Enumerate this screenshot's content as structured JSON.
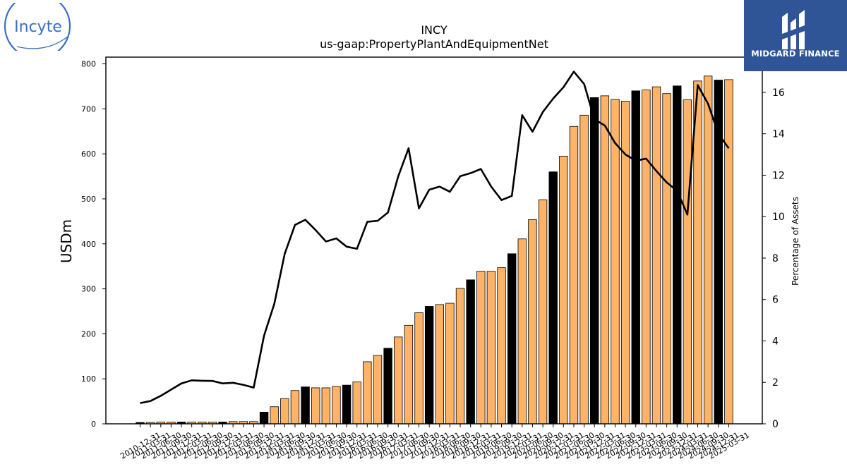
{
  "logos": {
    "left_text": "Incyte",
    "right_text": "MIDGARD FINANCE",
    "brand_blue": "#2f5597",
    "incyte_blue": "#3a6fbf"
  },
  "chart_data": {
    "type": "bar",
    "title": "INCY",
    "subtitle": "us-gaap:PropertyPlantAndEquipmentNet",
    "ylabel": "USDm",
    "y2label": "Percentage of Assets",
    "ylim": [
      0,
      815
    ],
    "y2lim": [
      0,
      17.7
    ],
    "yticks": [
      0,
      100,
      200,
      300,
      400,
      500,
      600,
      700,
      800
    ],
    "y2ticks": [
      0,
      2,
      4,
      6,
      8,
      10,
      12,
      14,
      16
    ],
    "grid": false,
    "bar_colors": {
      "quarter": "#ffb366",
      "year_end": "#000000"
    },
    "line_color": "#000000",
    "categories": [
      "2010-12-31",
      "2011-03-31",
      "2011-06-30",
      "2011-09-30",
      "2011-12-31",
      "2012-03-31",
      "2012-06-30",
      "2012-09-30",
      "2012-12-31",
      "2013-03-31",
      "2013-06-30",
      "2013-09-30",
      "2013-12-31",
      "2014-03-31",
      "2014-06-30",
      "2014-09-30",
      "2014-12-31",
      "2015-03-31",
      "2015-06-30",
      "2015-09-30",
      "2015-12-31",
      "2016-03-31",
      "2016-06-30",
      "2016-09-30",
      "2016-12-31",
      "2017-03-31",
      "2017-06-30",
      "2017-09-30",
      "2017-12-31",
      "2018-03-31",
      "2018-06-30",
      "2018-09-30",
      "2018-12-31",
      "2019-03-31",
      "2019-06-30",
      "2019-09-30",
      "2019-12-31",
      "2020-03-31",
      "2020-06-30",
      "2020-09-30",
      "2020-12-31",
      "2021-03-31",
      "2021-06-30",
      "2021-09-30",
      "2021-12-31",
      "2022-03-31",
      "2022-06-30",
      "2022-09-30",
      "2022-12-31",
      "2023-03-31",
      "2023-06-30",
      "2023-09-30",
      "2023-12-31",
      "2024-03-31",
      "2024-06-30",
      "2024-09-30",
      "2024-12-31",
      "2025-03-31"
    ],
    "bar_is_year_end": [
      true,
      false,
      false,
      false,
      true,
      false,
      false,
      false,
      true,
      false,
      false,
      false,
      true,
      false,
      false,
      false,
      true,
      false,
      false,
      false,
      true,
      false,
      false,
      false,
      true,
      false,
      false,
      false,
      true,
      false,
      false,
      false,
      true,
      false,
      false,
      false,
      true,
      false,
      false,
      false,
      true,
      false,
      false,
      false,
      true,
      false,
      false,
      false,
      true,
      false,
      false,
      false,
      true,
      false,
      false,
      false,
      true,
      false
    ],
    "series": [
      {
        "name": "PropertyPlantAndEquipmentNet",
        "values": [
          3,
          3,
          4,
          4,
          4,
          4,
          4,
          4,
          4,
          5,
          5,
          5,
          26,
          38,
          56,
          74,
          82,
          80,
          80,
          83,
          86,
          93,
          138,
          152,
          168,
          193,
          219,
          247,
          261,
          265,
          268,
          301,
          320,
          339,
          339,
          347,
          378,
          411,
          454,
          498,
          560,
          595,
          661,
          686,
          725,
          729,
          721,
          717,
          740,
          742,
          749,
          734,
          751,
          720,
          762,
          773,
          764,
          765
        ]
      },
      {
        "name": "Percentage of Assets",
        "axis": "right",
        "values": [
          1.0,
          1.1,
          1.35,
          1.65,
          1.95,
          2.1,
          2.08,
          2.07,
          1.95,
          1.98,
          1.88,
          1.75,
          4.25,
          5.8,
          8.2,
          9.6,
          9.85,
          9.35,
          8.8,
          8.95,
          8.55,
          8.45,
          9.75,
          9.8,
          10.2,
          11.95,
          13.3,
          10.4,
          11.3,
          11.45,
          11.2,
          11.95,
          12.1,
          12.3,
          11.45,
          10.8,
          11.0,
          14.9,
          14.1,
          15.05,
          15.7,
          16.25,
          17.0,
          16.4,
          14.7,
          14.4,
          13.55,
          13.0,
          12.7,
          12.8,
          12.2,
          11.65,
          11.25,
          10.1,
          16.35,
          15.45,
          14.0,
          13.3
        ]
      }
    ]
  }
}
